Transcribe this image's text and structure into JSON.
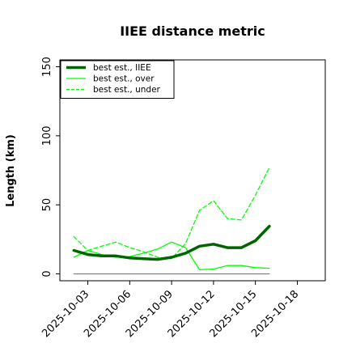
{
  "chart_data": {
    "type": "line",
    "title": "IIEE distance metric",
    "xlabel": "",
    "ylabel": "Length (km)",
    "xlim": [
      "2025-10-01",
      "2025-10-20"
    ],
    "ylim": [
      -5,
      155
    ],
    "yticks": [
      0,
      50,
      100,
      150
    ],
    "xticks": [
      "2025-10-03",
      "2025-10-06",
      "2025-10-09",
      "2025-10-12",
      "2025-10-15",
      "2025-10-18"
    ],
    "legend_position": "top-left",
    "grid": false,
    "x": [
      "2025-10-02",
      "2025-10-03",
      "2025-10-04",
      "2025-10-05",
      "2025-10-06",
      "2025-10-07",
      "2025-10-08",
      "2025-10-09",
      "2025-10-10",
      "2025-10-11",
      "2025-10-12",
      "2025-10-13",
      "2025-10-14",
      "2025-10-15",
      "2025-10-16"
    ],
    "series": [
      {
        "name": "best est., IIEE",
        "style": "solid-thick",
        "color": "#006400",
        "values": [
          17,
          14,
          13,
          13,
          11.5,
          11,
          10.5,
          12,
          15,
          20,
          21.5,
          19,
          19,
          24,
          34.5
        ]
      },
      {
        "name": "best est., over",
        "style": "solid",
        "color": "#00ff00",
        "values": [
          12,
          17,
          14,
          12,
          12.5,
          15,
          18,
          23,
          19,
          3,
          3.5,
          6,
          6,
          4.5,
          4
        ]
      },
      {
        "name": "best est., under",
        "style": "dashed",
        "color": "#00ff00",
        "values": [
          27,
          17,
          20,
          23,
          19,
          16,
          12,
          11,
          22,
          46,
          53,
          40,
          39,
          57,
          77
        ]
      },
      {
        "name": "",
        "style": "baseline",
        "color": "#808080",
        "values": [
          0,
          0,
          0,
          0,
          0,
          0,
          0,
          0,
          0,
          0,
          0,
          0,
          0,
          0,
          0
        ]
      }
    ]
  }
}
